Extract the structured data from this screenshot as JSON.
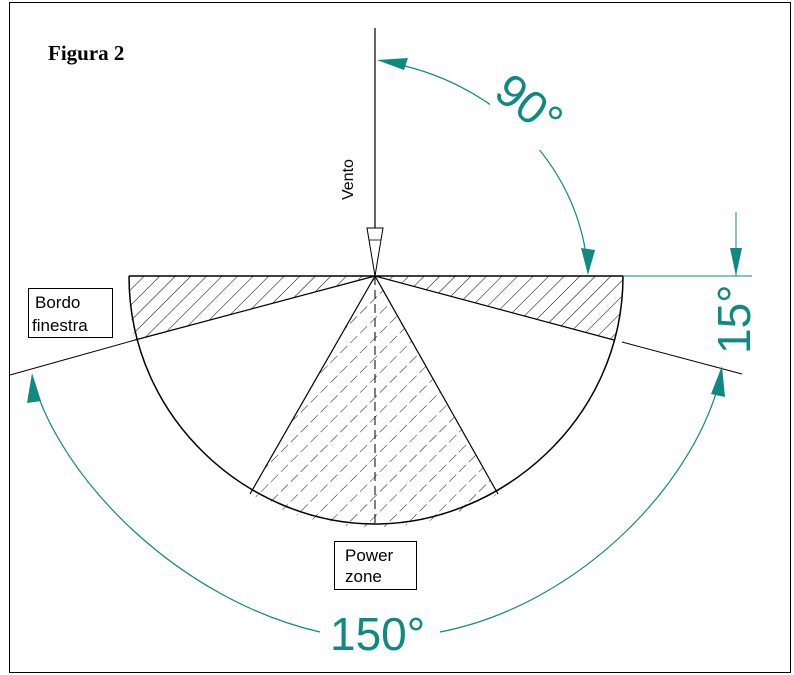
{
  "figure": {
    "title": "Figura 2",
    "wind_label": "Vento",
    "window_edge_label": [
      "Bordo",
      "finestra"
    ],
    "power_zone_label": [
      "Power",
      "zone"
    ],
    "angle_top": "90°",
    "angle_side": "15°",
    "angle_bottom": "150°"
  },
  "colors": {
    "dimension": "#0f8a80",
    "line": "#000000"
  }
}
